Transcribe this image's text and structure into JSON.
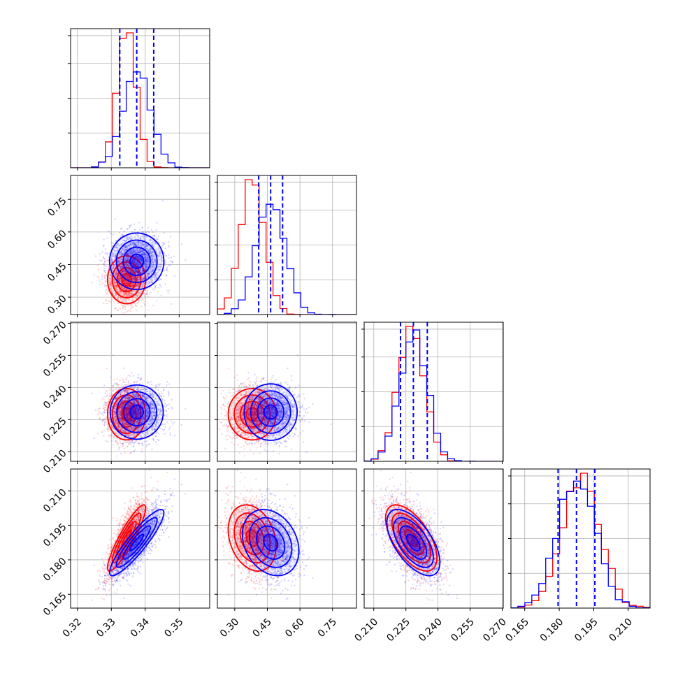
{
  "chart_data": {
    "type": "corner",
    "grid": true,
    "colors": {
      "series_red": "#ff0000",
      "series_blue": "#0000ff",
      "quantile_lines": "#0000ff"
    },
    "parameters": [
      {
        "range": [
          0.318,
          0.359
        ],
        "ticks": [
          0.32,
          0.33,
          0.34,
          0.35
        ],
        "tick_labels": [
          "0.32",
          "0.33",
          "0.34",
          "0.35"
        ]
      },
      {
        "range": [
          0.22,
          0.86
        ],
        "ticks": [
          0.3,
          0.45,
          0.6,
          0.75
        ],
        "tick_labels": [
          "0.30",
          "0.45",
          "0.60",
          "0.75"
        ]
      },
      {
        "range": [
          0.2055,
          0.2705
        ],
        "ticks": [
          0.21,
          0.225,
          0.24,
          0.255,
          0.27
        ],
        "tick_labels": [
          "0.210",
          "0.225",
          "0.240",
          "0.255",
          "0.270"
        ]
      },
      {
        "range": [
          0.159,
          0.2195
        ],
        "ticks": [
          0.165,
          0.18,
          0.195,
          0.21
        ],
        "tick_labels": [
          "0.165",
          "0.180",
          "0.195",
          "0.210"
        ]
      }
    ],
    "series": [
      {
        "color": "red",
        "mean": [
          0.3345,
          0.38,
          0.2275,
          0.1895
        ],
        "sigma": [
          0.0028,
          0.055,
          0.006,
          0.0072
        ]
      },
      {
        "color": "blue",
        "mean": [
          0.3375,
          0.465,
          0.2285,
          0.1875
        ],
        "sigma": [
          0.004,
          0.065,
          0.0062,
          0.0072
        ]
      }
    ],
    "quantiles": [
      [
        0.3325,
        0.3375,
        0.3425
      ],
      [
        0.41,
        0.465,
        0.52
      ],
      [
        0.2225,
        0.2285,
        0.235
      ],
      [
        0.1795,
        0.1875,
        0.1955
      ]
    ]
  }
}
